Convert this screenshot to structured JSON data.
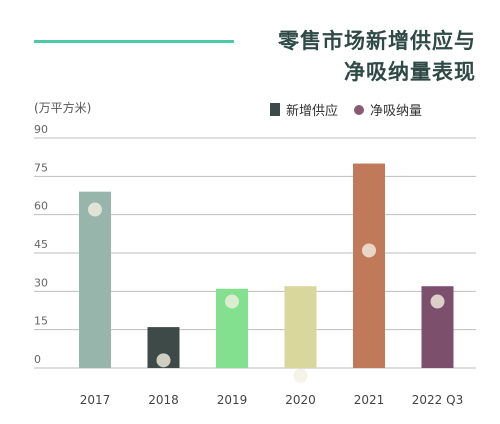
{
  "title_line1": "零售市场新增供应与",
  "title_line2": "净吸纳量表现",
  "unit_label": "(万平方米)",
  "legend": {
    "supply": "新增供应",
    "absorption": "净吸纳量"
  },
  "chart_data": {
    "type": "bar",
    "categories": [
      "2017",
      "2018",
      "2019",
      "2020",
      "2021",
      "2022 Q3"
    ],
    "series": [
      {
        "name": "新增供应",
        "type": "bar",
        "values": [
          69,
          16,
          31,
          32,
          80,
          32
        ],
        "colors": [
          "#97b5aa",
          "#3e4a48",
          "#82e08f",
          "#d9d79b",
          "#c07a5a",
          "#7c4f6c"
        ]
      },
      {
        "name": "净吸纳量",
        "type": "scatter",
        "values": [
          62,
          3,
          26,
          -3,
          46,
          26
        ]
      }
    ],
    "ylim": [
      0,
      90
    ],
    "yticks": [
      0,
      15,
      30,
      45,
      60,
      75,
      90
    ],
    "grid": true,
    "legend_position": "top"
  }
}
